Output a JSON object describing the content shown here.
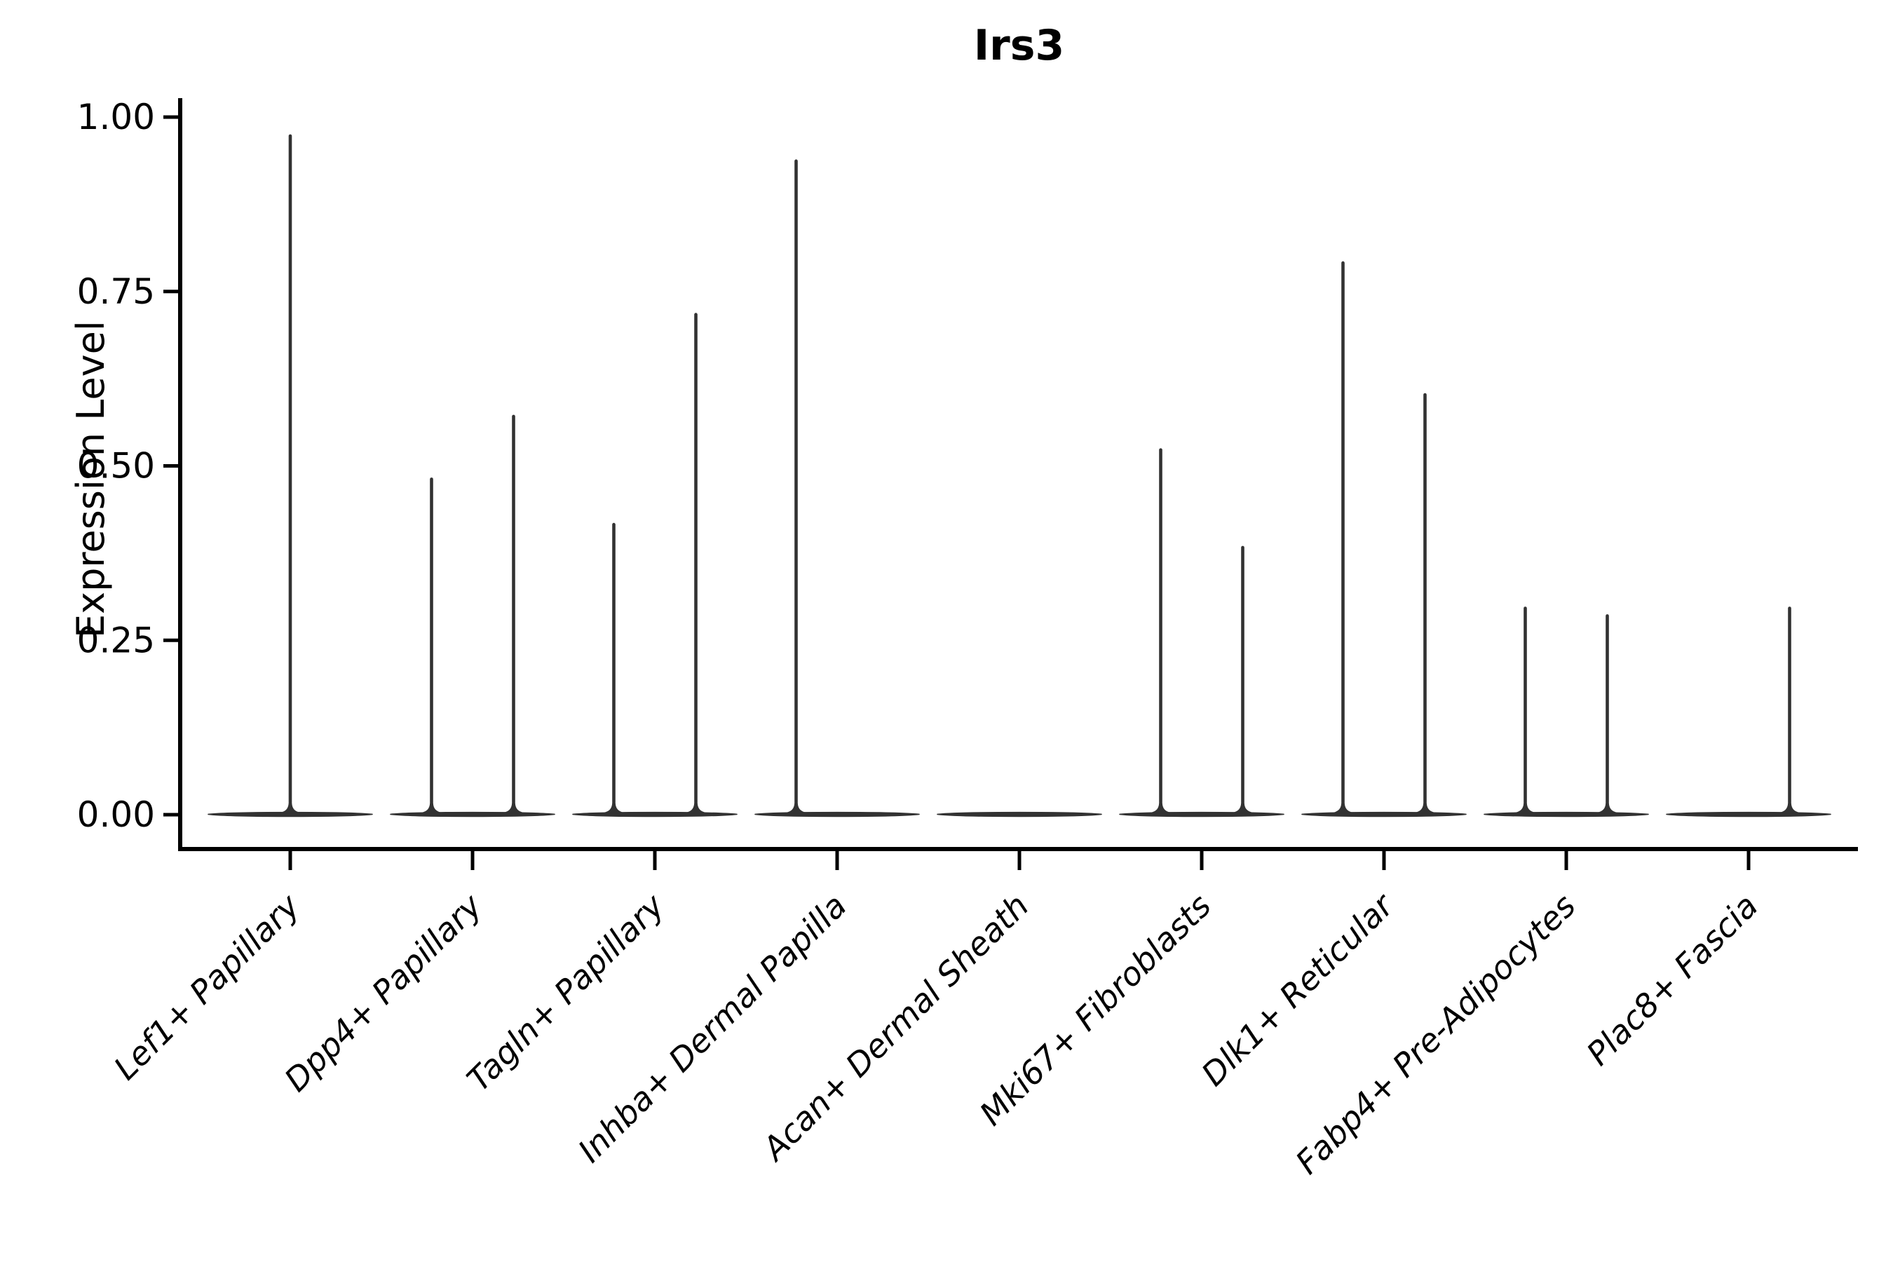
{
  "title": "Irs3",
  "y_axis": {
    "label": "Expression Level",
    "tick_labels": [
      "0.00",
      "0.25",
      "0.50",
      "0.75",
      "1.00"
    ]
  },
  "chart_data": {
    "type": "violin",
    "title": "Irs3",
    "xlabel": "",
    "ylabel": "Expression Level",
    "ylim": [
      0,
      1.02
    ],
    "yticks": [
      0,
      0.25,
      0.5,
      0.75,
      1.0
    ],
    "ytick_labels": [
      "0.00",
      "0.25",
      "0.50",
      "0.75",
      "1.00"
    ],
    "grid": false,
    "legend": "none",
    "x_tick_rotation_deg": 45,
    "categories": [
      "Lef1+ Papillary",
      "Dpp4+ Papillary",
      "Tagln+ Papillary",
      "Inhba+ Dermal Papilla",
      "Acan+ Dermal Sheath",
      "Mki67+ Fibroblasts",
      "Dlk1+ Reticular",
      "Fabp4+ Pre-Adipocytes",
      "Plac8+ Fascia"
    ],
    "description": "Needle-like violins: wide flat density at 0 with thin tails up to the max expression; dodged pairs within a category sit at offset_frac -0.225 / +0.225, single full-width violins at 0.",
    "violins": [
      {
        "category": "Lef1+ Papillary",
        "body_halfwidth_frac": 0.45,
        "baseline_value": 0,
        "spikes": [
          {
            "offset_frac": 0,
            "max": 0.975
          }
        ]
      },
      {
        "category": "Dpp4+ Papillary",
        "body_halfwidth_frac": 0.45,
        "baseline_value": 0,
        "spikes": [
          {
            "offset_frac": -0.225,
            "max": 0.483
          },
          {
            "offset_frac": 0.225,
            "max": 0.573
          }
        ]
      },
      {
        "category": "Tagln+ Papillary",
        "body_halfwidth_frac": 0.45,
        "baseline_value": 0,
        "spikes": [
          {
            "offset_frac": -0.225,
            "max": 0.418
          },
          {
            "offset_frac": 0.225,
            "max": 0.719
          }
        ]
      },
      {
        "category": "Inhba+ Dermal Papilla",
        "body_halfwidth_frac": 0.45,
        "baseline_value": 0,
        "spikes": [
          {
            "offset_frac": -0.225,
            "max": 0.939
          }
        ]
      },
      {
        "category": "Acan+ Dermal Sheath",
        "body_halfwidth_frac": 0.45,
        "baseline_value": 0,
        "spikes": []
      },
      {
        "category": "Mki67+ Fibroblasts",
        "body_halfwidth_frac": 0.45,
        "baseline_value": 0,
        "spikes": [
          {
            "offset_frac": -0.225,
            "max": 0.525
          },
          {
            "offset_frac": 0.225,
            "max": 0.385
          }
        ]
      },
      {
        "category": "Dlk1+ Reticular",
        "body_halfwidth_frac": 0.45,
        "baseline_value": 0,
        "spikes": [
          {
            "offset_frac": -0.225,
            "max": 0.793
          },
          {
            "offset_frac": 0.225,
            "max": 0.604
          }
        ]
      },
      {
        "category": "Fabp4+ Pre-Adipocytes",
        "body_halfwidth_frac": 0.45,
        "baseline_value": 0,
        "spikes": [
          {
            "offset_frac": -0.225,
            "max": 0.298
          },
          {
            "offset_frac": 0.225,
            "max": 0.287
          }
        ]
      },
      {
        "category": "Plac8+ Fascia",
        "body_halfwidth_frac": 0.45,
        "baseline_value": 0,
        "spikes": [
          {
            "offset_frac": 0.225,
            "max": 0.298
          }
        ]
      }
    ],
    "colors": {
      "violin": "#323232",
      "spine": "#000000",
      "tick": "#000000",
      "text": "#000000",
      "background": "#ffffff"
    }
  }
}
